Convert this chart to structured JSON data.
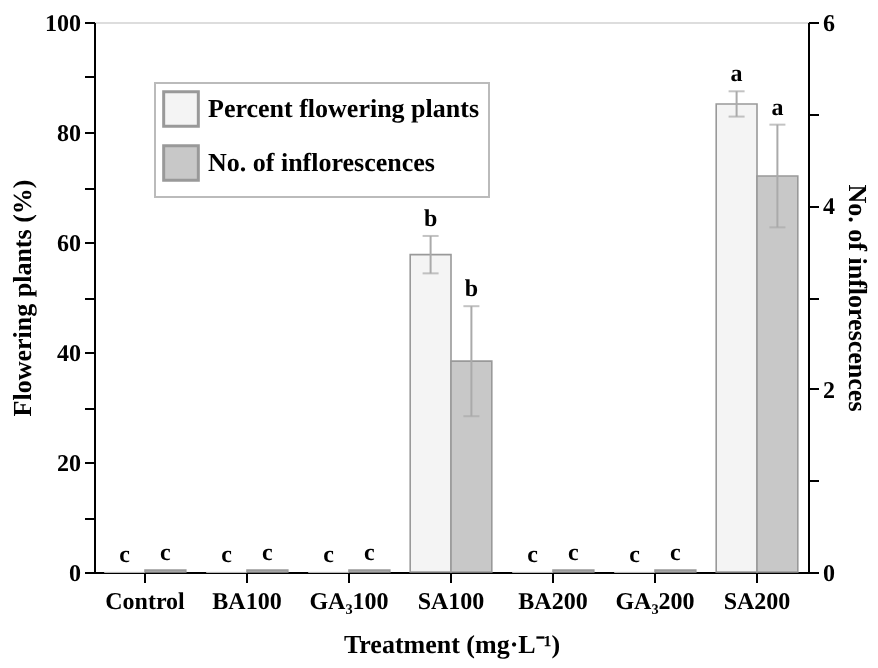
{
  "chart_data": {
    "type": "bar",
    "xlabel": "Treatment (mg·L⁻¹)",
    "ylabel": "Flowering plants (%)",
    "y2label": "No. of inflorescences",
    "categories": [
      "Control",
      "BA100",
      "GA₃100",
      "SA100",
      "BA200",
      "GA₃200",
      "SA200"
    ],
    "series": [
      {
        "name": "Percent flowering plants",
        "color": "#f4f4f4",
        "values": [
          0,
          0,
          0,
          57.7,
          0,
          0,
          85.1
        ],
        "errors": [
          null,
          null,
          null,
          3.4,
          null,
          null,
          2.3
        ],
        "value_labels": [
          "c",
          "c",
          "c",
          "b",
          "c",
          "c",
          "a"
        ]
      },
      {
        "name": "No. of inflorescences",
        "color": "#c8c8c8",
        "axis": "y2",
        "values": [
          0.02,
          0.02,
          0.02,
          2.3,
          0.02,
          0.02,
          4.32
        ],
        "errors": [
          null,
          null,
          null,
          0.6,
          null,
          null,
          0.56
        ],
        "value_labels": [
          "c",
          "c",
          "c",
          "b",
          "c",
          "c",
          "a"
        ]
      }
    ],
    "ylim": [
      0,
      100
    ],
    "yticks": [
      0,
      {
        "value": 10,
        "label": null
      },
      20,
      {
        "value": 30,
        "label": null
      },
      40,
      {
        "value": 50,
        "label": null
      },
      60,
      {
        "value": 70,
        "label": null
      },
      80,
      {
        "value": 90,
        "label": null
      },
      100
    ],
    "y2lim": [
      0,
      6
    ],
    "y2ticks": [
      0,
      {
        "value": 1,
        "label": null
      },
      2,
      {
        "value": 3,
        "label": null
      },
      4,
      {
        "value": 5,
        "label": null
      },
      6
    ],
    "grid": false,
    "legend": "top left"
  }
}
